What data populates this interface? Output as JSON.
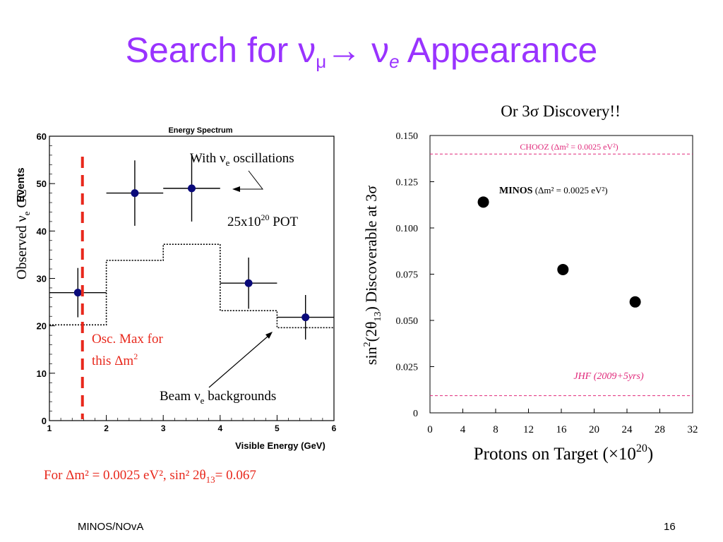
{
  "slide": {
    "title_prefix": "Search for ",
    "title_nu": "ν",
    "title_mu": "μ",
    "title_arrow": "→",
    "title_nu2": "ν",
    "title_e": "e",
    "title_suffix": " Appearance",
    "footer_left": "MINOS/NOvA",
    "page_number": "16",
    "title_color": "#9933ff"
  },
  "left_chart": {
    "title": "Energy Spectrum",
    "xlabel": "Visible Energy (GeV)",
    "ylabel_events": "Events",
    "ylabel_side_prefix": "Observed ν",
    "ylabel_side_sub": "e",
    "ylabel_side_suffix": " CC",
    "annotation_osc": "With ν",
    "annotation_osc_sub": "e",
    "annotation_osc_suffix": " oscillations",
    "annotation_pot": "25x10",
    "annotation_pot_sup": "20",
    "annotation_pot_suffix": " POT",
    "annotation_max_line1": "Osc. Max for",
    "annotation_max_line2": "this Δm",
    "annotation_max_sup": "2",
    "annotation_beam": "Beam ν",
    "annotation_beam_sub": "e",
    "annotation_beam_suffix": " backgrounds",
    "caption": "For Δm² = 0.0025 eV², sin² 2θ",
    "caption_sub": "13",
    "caption_suffix": "= 0.067",
    "red_color": "#e8281c"
  },
  "right_chart": {
    "header": "Or 3σ Discovery!!",
    "ylabel": "sin²(2θ₁₃) Discoverable at 3σ",
    "ylabel_prefix": "sin",
    "ylabel_sup": "2",
    "ylabel_mid": "(2θ",
    "ylabel_sub": "13",
    "ylabel_suffix": ") Discoverable at 3σ",
    "xlabel": "Protons on Target (×10",
    "xlabel_sup": "20",
    "xlabel_suffix": ")",
    "chooz_label": "CHOOZ (Δm² = 0.0025 eV²)",
    "minos_label_bold": "MINOS",
    "minos_label_rest": " (Δm² = 0.0025 eV²)",
    "jhf_label": "JHF (2009+5yrs)",
    "line_color": "#e0287a"
  },
  "chart_data": [
    {
      "type": "scatter",
      "title": "Energy Spectrum",
      "xlabel": "Visible Energy (GeV)",
      "ylabel": "Events",
      "xlim": [
        1,
        6
      ],
      "ylim": [
        0,
        60
      ],
      "xticks": [
        "1",
        "2",
        "3",
        "4",
        "5",
        "6"
      ],
      "yticks": [
        "0",
        "10",
        "20",
        "30",
        "40",
        "50",
        "60"
      ],
      "series": [
        {
          "name": "With νe oscillations",
          "bins": [
            [
              1,
              2
            ],
            [
              2,
              3
            ],
            [
              3,
              4
            ],
            [
              4,
              5
            ],
            [
              5,
              6
            ]
          ],
          "x": [
            1.5,
            2.5,
            3.5,
            4.5,
            5.5
          ],
          "values": [
            27,
            48,
            49,
            29,
            21.8
          ],
          "errors": [
            5.2,
            6.9,
            7.0,
            5.4,
            4.7
          ]
        },
        {
          "name": "Beam νe backgrounds",
          "bins": [
            [
              1,
              2
            ],
            [
              2,
              3
            ],
            [
              3,
              4
            ],
            [
              4,
              5
            ],
            [
              5,
              6
            ]
          ],
          "values": [
            20.2,
            33.8,
            37.2,
            23.2,
            19.6
          ],
          "style": "dotted-step"
        }
      ],
      "osc_max_x": 1.58
    },
    {
      "type": "scatter",
      "xlabel": "Protons on Target (×10²⁰)",
      "ylabel": "sin²(2θ₁₃) Discoverable at 3σ",
      "xlim": [
        0,
        32
      ],
      "ylim": [
        0,
        0.15
      ],
      "xticks": [
        "0",
        "4",
        "8",
        "12",
        "16",
        "20",
        "24",
        "28",
        "32"
      ],
      "yticks": [
        "0",
        "0.025",
        "0.050",
        "0.075",
        "0.100",
        "0.125",
        "0.150"
      ],
      "series": [
        {
          "name": "MINOS",
          "x": [
            6.5,
            16.2,
            25.0
          ],
          "values": [
            0.114,
            0.0775,
            0.06
          ]
        }
      ],
      "reference_lines": [
        {
          "name": "CHOOZ",
          "y": 0.14
        },
        {
          "name": "JHF",
          "y": 0.0093
        }
      ]
    }
  ]
}
